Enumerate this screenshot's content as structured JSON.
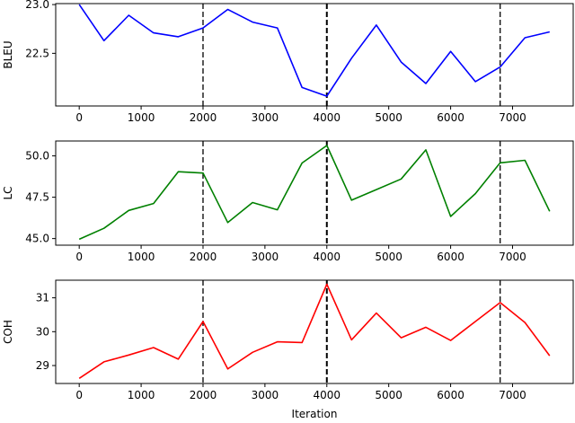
{
  "figure": {
    "xlabel": "Iteration",
    "vlines": [
      2000,
      4000,
      6800
    ],
    "vline_style": "dashed",
    "vline_color": "#000000"
  },
  "chart_data": [
    {
      "type": "line",
      "title": "",
      "xlabel": "",
      "ylabel": "BLEU",
      "color": "#0000ff",
      "x": [
        0,
        400,
        800,
        1200,
        1600,
        2000,
        2400,
        2800,
        3200,
        3600,
        4000,
        4400,
        4800,
        5200,
        5600,
        6000,
        6400,
        6800,
        7200,
        7600
      ],
      "values": [
        23.0,
        22.63,
        22.89,
        22.71,
        22.67,
        22.76,
        22.95,
        22.82,
        22.76,
        22.15,
        22.06,
        22.45,
        22.79,
        22.41,
        22.19,
        22.52,
        22.21,
        22.36,
        22.66,
        22.72
      ],
      "yticks": [
        22.5,
        23.0
      ],
      "ytick_labels": [
        "22.5",
        "23.0"
      ],
      "ylim": [
        21.96,
        23.01
      ],
      "xticks": [
        0,
        1000,
        2000,
        3000,
        4000,
        5000,
        6000,
        7000
      ],
      "xtick_labels": [
        "0",
        "1000",
        "2000",
        "3000",
        "4000",
        "5000",
        "6000",
        "7000"
      ],
      "xlim": [
        -380,
        7980
      ],
      "vlines": [
        2000,
        4000,
        6800
      ],
      "grid": false
    },
    {
      "type": "line",
      "title": "",
      "xlabel": "",
      "ylabel": "LC",
      "color": "#008000",
      "x": [
        0,
        400,
        800,
        1200,
        1600,
        2000,
        2400,
        2800,
        3200,
        3600,
        4000,
        4400,
        4800,
        5200,
        5600,
        6000,
        6400,
        6800,
        7200,
        7600
      ],
      "values": [
        44.96,
        45.62,
        46.7,
        47.12,
        49.04,
        48.96,
        45.97,
        47.18,
        46.74,
        49.57,
        50.63,
        47.32,
        47.96,
        48.6,
        50.36,
        46.34,
        47.72,
        49.58,
        49.73,
        46.65
      ],
      "yticks": [
        45.0,
        47.5,
        50.0
      ],
      "ytick_labels": [
        "45.0",
        "47.5",
        "50.0"
      ],
      "ylim": [
        44.6,
        50.9
      ],
      "xticks": [
        0,
        1000,
        2000,
        3000,
        4000,
        5000,
        6000,
        7000
      ],
      "xtick_labels": [
        "0",
        "1000",
        "2000",
        "3000",
        "4000",
        "5000",
        "6000",
        "7000"
      ],
      "xlim": [
        -380,
        7980
      ],
      "vlines": [
        2000,
        4000,
        6800
      ],
      "grid": false
    },
    {
      "type": "line",
      "title": "",
      "xlabel": "Iteration",
      "ylabel": "COH",
      "color": "#ff0000",
      "x": [
        0,
        400,
        800,
        1200,
        1600,
        2000,
        2400,
        2800,
        3200,
        3600,
        4000,
        4400,
        4800,
        5200,
        5600,
        6000,
        6400,
        6800,
        7200,
        7600
      ],
      "values": [
        28.62,
        29.11,
        29.31,
        29.53,
        29.19,
        30.3,
        28.9,
        29.39,
        29.7,
        29.68,
        31.4,
        29.76,
        30.55,
        29.82,
        30.13,
        29.74,
        30.3,
        30.86,
        30.27,
        29.29
      ],
      "yticks": [
        29,
        30,
        31
      ],
      "ytick_labels": [
        "29",
        "30",
        "31"
      ],
      "ylim": [
        28.47,
        31.52
      ],
      "xticks": [
        0,
        1000,
        2000,
        3000,
        4000,
        5000,
        6000,
        7000
      ],
      "xtick_labels": [
        "0",
        "1000",
        "2000",
        "3000",
        "4000",
        "5000",
        "6000",
        "7000"
      ],
      "xlim": [
        -380,
        7980
      ],
      "vlines": [
        2000,
        4000,
        6800
      ],
      "grid": false
    }
  ]
}
